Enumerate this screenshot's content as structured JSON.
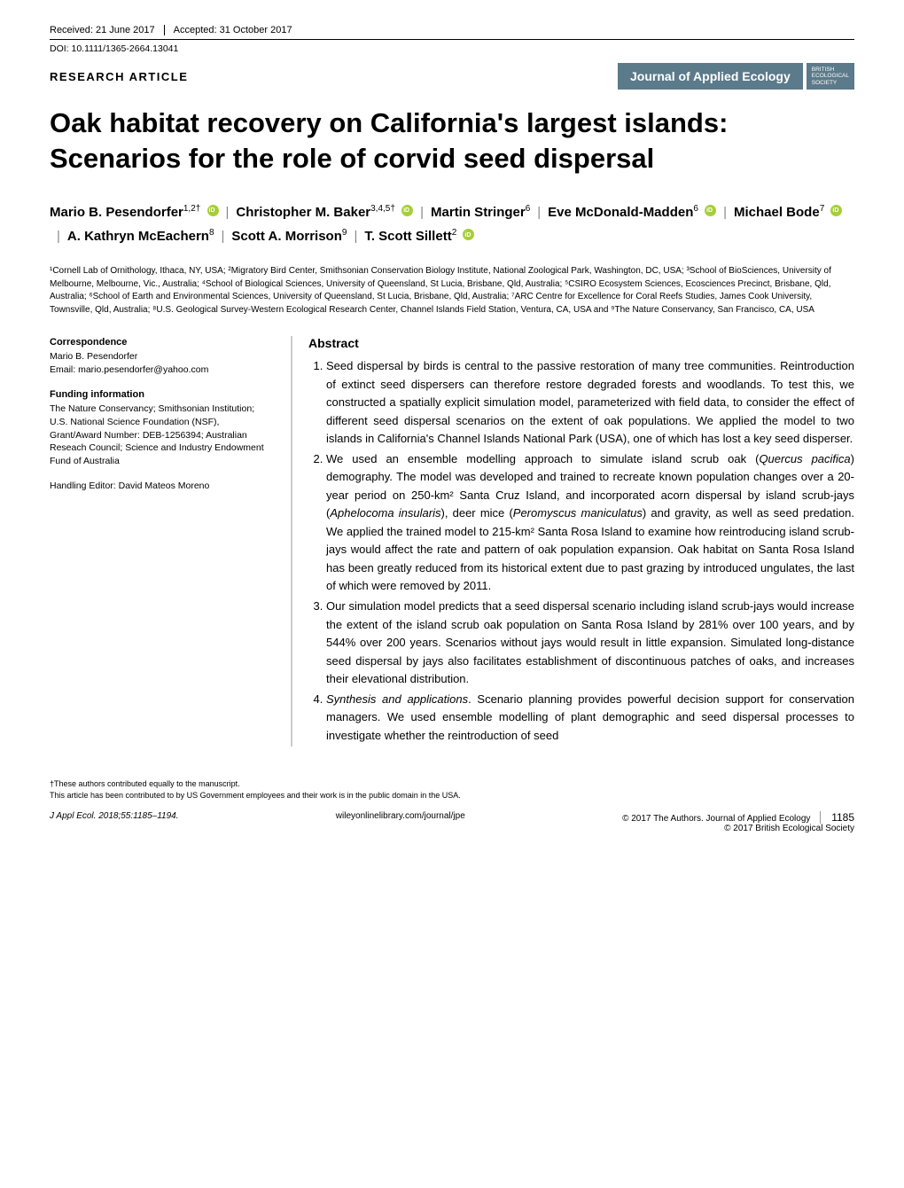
{
  "header": {
    "received": "Received: 21 June 2017",
    "accepted": "Accepted: 31 October 2017",
    "doi": "DOI: 10.1111/1365-2664.13041",
    "article_type": "RESEARCH ARTICLE",
    "journal_name": "Journal of Applied Ecology",
    "society_line1": "BRITISH",
    "society_line2": "ECOLOGICAL",
    "society_line3": "SOCIETY"
  },
  "title": "Oak habitat recovery on California's largest islands: Scenarios for the role of corvid seed dispersal",
  "authors": [
    {
      "name": "Mario B. Pesendorfer",
      "sup": "1,2†",
      "orcid": true
    },
    {
      "name": "Christopher M. Baker",
      "sup": "3,4,5†",
      "orcid": true
    },
    {
      "name": "Martin Stringer",
      "sup": "6",
      "orcid": false
    },
    {
      "name": "Eve McDonald-Madden",
      "sup": "6",
      "orcid": true
    },
    {
      "name": "Michael Bode",
      "sup": "7",
      "orcid": true
    },
    {
      "name": "A. Kathryn McEachern",
      "sup": "8",
      "orcid": false
    },
    {
      "name": "Scott A. Morrison",
      "sup": "9",
      "orcid": false
    },
    {
      "name": "T. Scott Sillett",
      "sup": "2",
      "orcid": true
    }
  ],
  "affiliations": "¹Cornell Lab of Ornithology, Ithaca, NY, USA; ²Migratory Bird Center, Smithsonian Conservation Biology Institute, National Zoological Park, Washington, DC, USA; ³School of BioSciences, University of Melbourne, Melbourne, Vic., Australia; ⁴School of Biological Sciences, University of Queensland, St Lucia, Brisbane, Qld, Australia; ⁵CSIRO Ecosystem Sciences, Ecosciences Precinct, Brisbane, Qld, Australia; ⁶School of Earth and Environmental Sciences, University of Queensland, St Lucia, Brisbane, Qld, Australia; ⁷ARC Centre for Excellence for Coral Reefs Studies, James Cook University, Townsville, Qld, Australia; ⁸U.S. Geological Survey-Western Ecological Research Center, Channel Islands Field Station, Ventura, CA, USA and ⁹The Nature Conservancy, San Francisco, CA, USA",
  "correspondence": {
    "heading": "Correspondence",
    "name": "Mario B. Pesendorfer",
    "email": "Email: mario.pesendorfer@yahoo.com"
  },
  "funding": {
    "heading": "Funding information",
    "text": "The Nature Conservancy; Smithsonian Institution; U.S. National Science Foundation (NSF), Grant/Award Number: DEB-1256394; Australian Reseach Council; Science and Industry Endowment Fund of Australia"
  },
  "editor": "Handling Editor: David Mateos Moreno",
  "abstract": {
    "heading": "Abstract",
    "items": [
      "Seed dispersal by birds is central to the passive restoration of many tree communities. Reintroduction of extinct seed dispersers can therefore restore degraded forests and woodlands. To test this, we constructed a spatially explicit simulation model, parameterized with field data, to consider the effect of different seed dispersal scenarios on the extent of oak populations. We applied the model to two islands in California's Channel Islands National Park (USA), one of which has lost a key seed disperser.",
      "We used an ensemble modelling approach to simulate island scrub oak (Quercus pacifica) demography. The model was developed and trained to recreate known population changes over a 20-year period on 250-km² Santa Cruz Island, and incorporated acorn dispersal by island scrub-jays (Aphelocoma insularis), deer mice (Peromyscus maniculatus) and gravity, as well as seed predation. We applied the trained model to 215-km² Santa Rosa Island to examine how reintroducing island scrub-jays would affect the rate and pattern of oak population expansion. Oak habitat on Santa Rosa Island has been greatly reduced from its historical extent due to past grazing by introduced ungulates, the last of which were removed by 2011.",
      "Our simulation model predicts that a seed dispersal scenario including island scrub-jays would increase the extent of the island scrub oak population on Santa Rosa Island by 281% over 100 years, and by 544% over 200 years. Scenarios without jays would result in little expansion. Simulated long-distance seed dispersal by jays also facilitates establishment of discontinuous patches of oaks, and increases their elevational distribution.",
      "Synthesis and applications. Scenario planning provides powerful decision support for conservation managers. We used ensemble modelling of plant demographic and seed dispersal processes to investigate whether the reintroduction of seed"
    ]
  },
  "footnotes": {
    "equal": "†These authors contributed equally to the manuscript.",
    "public_domain": "This article has been contributed to by US Government employees and their work is in the public domain in the USA."
  },
  "footer": {
    "citation": "J Appl Ecol. 2018;55:1185–1194.",
    "url": "wileyonlinelibrary.com/journal/jpe",
    "copyright1": "© 2017 The Authors. Journal of Applied Ecology",
    "copyright2": "© 2017 British Ecological Society",
    "page": "1185"
  }
}
